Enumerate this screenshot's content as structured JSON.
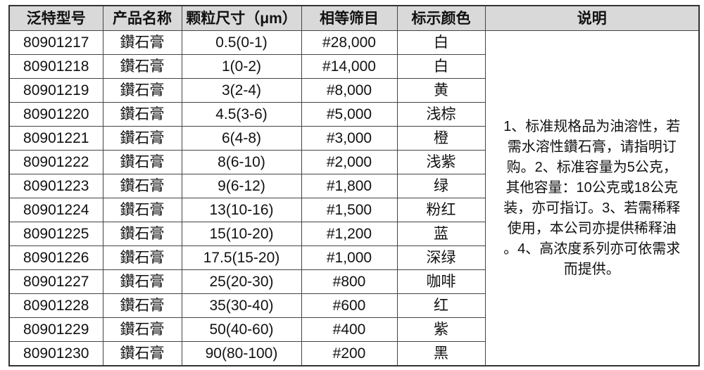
{
  "headers": [
    "泛特型号",
    "产品名称",
    "颗粒尺寸（μm）",
    "相等筛目",
    "标示颜色",
    "说明"
  ],
  "rows": [
    [
      "80901217",
      "鑽石膏",
      "0.5(0-1)",
      "#28,000",
      "白"
    ],
    [
      "80901218",
      "鑽石膏",
      "1(0-2)",
      "#14,000",
      "白"
    ],
    [
      "80901219",
      "鑽石膏",
      "3(2-4)",
      "#8,000",
      "黄"
    ],
    [
      "80901220",
      "鑽石膏",
      "4.5(3-6)",
      "#5,000",
      "浅棕"
    ],
    [
      "80901221",
      "鑽石膏",
      "6(4-8)",
      "#3,000",
      "橙"
    ],
    [
      "80901222",
      "鑽石膏",
      "8(6-10)",
      "#2,000",
      "浅紫"
    ],
    [
      "80901223",
      "鑽石膏",
      "9(6-12)",
      "#1,800",
      "绿"
    ],
    [
      "80901224",
      "鑽石膏",
      "13(10-16)",
      "#1,500",
      "粉红"
    ],
    [
      "80901225",
      "鑽石膏",
      "15(10-20)",
      "#1,200",
      "蓝"
    ],
    [
      "80901226",
      "鑽石膏",
      "17.5(15-20)",
      "#1,000",
      "深绿"
    ],
    [
      "80901227",
      "鑽石膏",
      "25(20-30)",
      "#800",
      "咖啡"
    ],
    [
      "80901228",
      "鑽石膏",
      "35(30-40)",
      "#600",
      "红"
    ],
    [
      "80901229",
      "鑽石膏",
      "50(40-60)",
      "#400",
      "紫"
    ],
    [
      "80901230",
      "鑽石膏",
      "90(80-100)",
      "#200",
      "黑"
    ]
  ],
  "note_lines": [
    "1、标准规格品为油溶性，若",
    "需水溶性鑽石膏，请指明订",
    "购。2、标准容量为5公克，",
    "其他容量：10公克或18公克",
    "装，亦可指订。3、若需稀释",
    "使用，本公司亦提供稀释油",
    "。4、高浓度系列亦可依需求",
    "而提供。"
  ]
}
